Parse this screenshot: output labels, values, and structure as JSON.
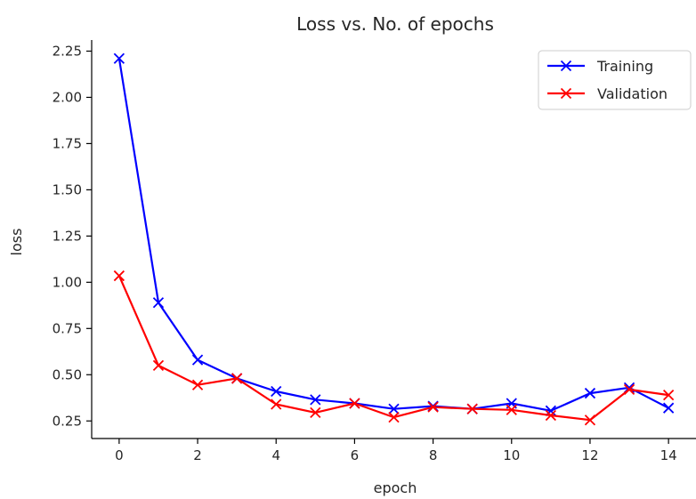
{
  "chart_data": {
    "type": "line",
    "title": "Loss vs. No. of epochs",
    "xlabel": "epoch",
    "ylabel": "loss",
    "x": [
      0,
      1,
      2,
      3,
      4,
      5,
      6,
      7,
      8,
      9,
      10,
      11,
      12,
      13,
      14
    ],
    "xlim": [
      -0.7,
      14.7
    ],
    "ylim": [
      0.155,
      2.31
    ],
    "xticks": [
      0,
      2,
      4,
      6,
      8,
      10,
      12,
      14
    ],
    "yticks": [
      0.25,
      0.5,
      0.75,
      1.0,
      1.25,
      1.5,
      1.75,
      2.0,
      2.25
    ],
    "xtick_labels": [
      "0",
      "2",
      "4",
      "6",
      "8",
      "10",
      "12",
      "14"
    ],
    "ytick_labels": [
      "0.25",
      "0.50",
      "0.75",
      "1.00",
      "1.25",
      "1.50",
      "1.75",
      "2.00",
      "2.25"
    ],
    "grid": false,
    "legend_position": "top-right",
    "marker": "x",
    "series": [
      {
        "name": "Training",
        "color": "#0000ff",
        "values": [
          2.21,
          0.89,
          0.58,
          0.48,
          0.41,
          0.365,
          0.345,
          0.315,
          0.33,
          0.315,
          0.345,
          0.305,
          0.4,
          0.43,
          0.32
        ]
      },
      {
        "name": "Validation",
        "color": "#ff0000",
        "values": [
          1.035,
          0.55,
          0.445,
          0.48,
          0.34,
          0.295,
          0.345,
          0.27,
          0.325,
          0.315,
          0.31,
          0.28,
          0.255,
          0.42,
          0.39
        ]
      }
    ]
  }
}
